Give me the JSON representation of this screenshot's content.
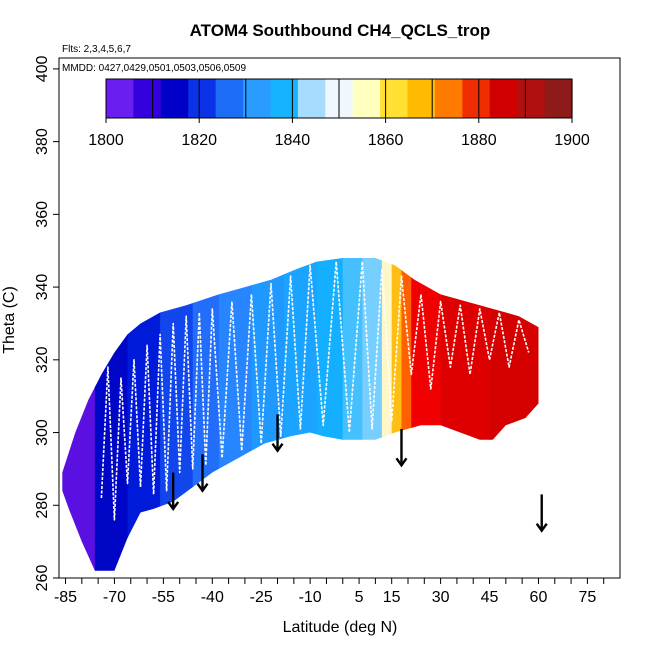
{
  "chart_data": {
    "type": "heatmap",
    "title": "ATOM4 Southbound CH4_QCLS_trop",
    "flights_note": "Flts: 2,3,4,5,6,7",
    "dates_note": "MMDD: 0427,0429,0501,0503,0506,0509",
    "xlabel": "Latitude (deg N)",
    "ylabel": "Theta (C)",
    "xlim": [
      -87,
      85
    ],
    "ylim": [
      260,
      403
    ],
    "x_tick_labels": [
      "-85",
      "-70",
      "-55",
      "-40",
      "-25",
      "-10",
      "5",
      "15",
      "30",
      "45",
      "60",
      "75"
    ],
    "y_tick_labels": [
      "260",
      "280",
      "300",
      "320",
      "340",
      "360",
      "380",
      "400"
    ],
    "colorbar": {
      "min": 1800,
      "max": 1900,
      "tick_labels": [
        "1800",
        "1820",
        "1840",
        "1860",
        "1880",
        "1900"
      ],
      "colors": [
        "#6a1ff0",
        "#3300dd",
        "#0000c8",
        "#0a32e6",
        "#1d6cf5",
        "#2a9cff",
        "#14b4ff",
        "#a8dcff",
        "#f0f8ff",
        "#ffffbf",
        "#ffe033",
        "#ffbb00",
        "#ff7a00",
        "#f02d00",
        "#d10000",
        "#b01010",
        "#8f1a1a"
      ]
    },
    "color_scale": [
      {
        "value": 1800,
        "color": "#8a2be2"
      },
      {
        "value": 1805,
        "color": "#5a10e0"
      },
      {
        "value": 1810,
        "color": "#0000c0"
      },
      {
        "value": 1820,
        "color": "#0020e0"
      },
      {
        "value": 1830,
        "color": "#2a80ff"
      },
      {
        "value": 1838,
        "color": "#14b0ff"
      },
      {
        "value": 1846,
        "color": "#d8eeff"
      },
      {
        "value": 1852,
        "color": "#fff7c8"
      },
      {
        "value": 1860,
        "color": "#ffe033"
      },
      {
        "value": 1868,
        "color": "#ffaa00"
      },
      {
        "value": 1876,
        "color": "#ff6000"
      },
      {
        "value": 1884,
        "color": "#f00000"
      },
      {
        "value": 1892,
        "color": "#cc0000"
      },
      {
        "value": 1900,
        "color": "#8b1a1a"
      }
    ],
    "curtain_top": [
      [
        -86,
        289
      ],
      [
        -82,
        300
      ],
      [
        -78,
        309
      ],
      [
        -74,
        316
      ],
      [
        -70,
        322
      ],
      [
        -66,
        327
      ],
      [
        -62,
        330
      ],
      [
        -56,
        333
      ],
      [
        -48,
        335
      ],
      [
        -38,
        338
      ],
      [
        -30,
        340
      ],
      [
        -22,
        342
      ],
      [
        -14,
        345
      ],
      [
        -8,
        347
      ],
      [
        0,
        348
      ],
      [
        10,
        348
      ],
      [
        16,
        346
      ],
      [
        22,
        342
      ],
      [
        30,
        338
      ],
      [
        38,
        336
      ],
      [
        46,
        334
      ],
      [
        54,
        332
      ],
      [
        58,
        330
      ],
      [
        60,
        329
      ]
    ],
    "curtain_bottom": [
      [
        60,
        308
      ],
      [
        56,
        304
      ],
      [
        50,
        302
      ],
      [
        46,
        298
      ],
      [
        42,
        298
      ],
      [
        36,
        300
      ],
      [
        30,
        302
      ],
      [
        24,
        302
      ],
      [
        16,
        300
      ],
      [
        10,
        298
      ],
      [
        0,
        298
      ],
      [
        -6,
        299
      ],
      [
        -10,
        300
      ],
      [
        -16,
        299
      ],
      [
        -24,
        297
      ],
      [
        -32,
        293
      ],
      [
        -40,
        289
      ],
      [
        -46,
        285
      ],
      [
        -52,
        281
      ],
      [
        -58,
        279
      ],
      [
        -62,
        278
      ],
      [
        -66,
        271
      ],
      [
        -70,
        262
      ],
      [
        -76,
        262
      ],
      [
        -80,
        270
      ],
      [
        -84,
        279
      ],
      [
        -86,
        284
      ]
    ],
    "bands": [
      {
        "lat_min": -87,
        "lat_max": -76,
        "value": 1805
      },
      {
        "lat_min": -76,
        "lat_max": -66,
        "value": 1812
      },
      {
        "lat_min": -66,
        "lat_max": -56,
        "value": 1818
      },
      {
        "lat_min": -56,
        "lat_max": -46,
        "value": 1824
      },
      {
        "lat_min": -46,
        "lat_max": -38,
        "value": 1828
      },
      {
        "lat_min": -38,
        "lat_max": -28,
        "value": 1831
      },
      {
        "lat_min": -28,
        "lat_max": -18,
        "value": 1834
      },
      {
        "lat_min": -18,
        "lat_max": -8,
        "value": 1836
      },
      {
        "lat_min": -8,
        "lat_max": 0,
        "value": 1838
      },
      {
        "lat_min": 0,
        "lat_max": 6,
        "value": 1840
      },
      {
        "lat_min": 6,
        "lat_max": 12,
        "value": 1842
      },
      {
        "lat_min": 12,
        "lat_max": 15,
        "value": 1852
      },
      {
        "lat_min": 15,
        "lat_max": 18,
        "value": 1865
      },
      {
        "lat_min": 18,
        "lat_max": 21,
        "value": 1876
      },
      {
        "lat_min": 21,
        "lat_max": 30,
        "value": 1884
      },
      {
        "lat_min": 30,
        "lat_max": 45,
        "value": 1888
      },
      {
        "lat_min": 45,
        "lat_max": 61,
        "value": 1890
      }
    ],
    "flight_tracks": [
      [
        -74,
        282
      ],
      [
        -72,
        318
      ],
      [
        -70,
        276
      ],
      [
        -68,
        315
      ],
      [
        -66,
        286
      ],
      [
        -64,
        320
      ],
      [
        -62,
        285
      ],
      [
        -60,
        324
      ],
      [
        -58,
        283
      ],
      [
        -56,
        327
      ],
      [
        -54,
        284
      ],
      [
        -52,
        330
      ],
      [
        -50,
        289
      ],
      [
        -48,
        332
      ],
      [
        -46,
        290
      ],
      [
        -44,
        333
      ],
      [
        -42,
        291
      ],
      [
        -40,
        334
      ],
      [
        -37,
        293
      ],
      [
        -34,
        336
      ],
      [
        -31,
        295
      ],
      [
        -28,
        338
      ],
      [
        -25,
        297
      ],
      [
        -22,
        341
      ],
      [
        -19,
        299
      ],
      [
        -16,
        343
      ],
      [
        -13,
        301
      ],
      [
        -10,
        346
      ],
      [
        -6,
        302
      ],
      [
        -2,
        347
      ],
      [
        2,
        300
      ],
      [
        6,
        347
      ],
      [
        9,
        301
      ],
      [
        12,
        345
      ],
      [
        15,
        303
      ],
      [
        18,
        343
      ],
      [
        21,
        316
      ],
      [
        24,
        338
      ],
      [
        27,
        312
      ],
      [
        30,
        336
      ],
      [
        33,
        318
      ],
      [
        36,
        335
      ],
      [
        39,
        316
      ],
      [
        42,
        334
      ],
      [
        45,
        320
      ],
      [
        48,
        333
      ],
      [
        51,
        318
      ],
      [
        54,
        331
      ],
      [
        57,
        322
      ]
    ],
    "arrows": [
      {
        "lat": -52,
        "theta_top": 289,
        "theta_bottom": 279
      },
      {
        "lat": -43,
        "theta_top": 294,
        "theta_bottom": 284
      },
      {
        "lat": -20,
        "theta_top": 305,
        "theta_bottom": 295
      },
      {
        "lat": 18,
        "theta_top": 301,
        "theta_bottom": 291
      },
      {
        "lat": 61,
        "theta_top": 283,
        "theta_bottom": 273
      }
    ]
  }
}
